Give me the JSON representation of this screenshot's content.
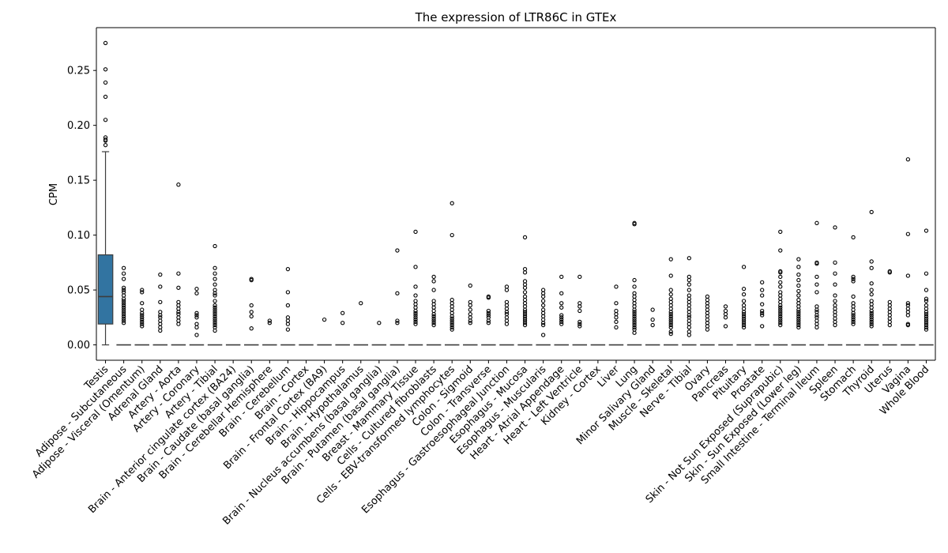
{
  "chart_data": {
    "type": "box",
    "title": "The expression of LTR86C in GTEx",
    "xlabel": "",
    "ylabel": "CPM",
    "ylim": [
      -0.014,
      0.289
    ],
    "yticks": [
      0.0,
      0.05,
      0.1,
      0.15,
      0.2,
      0.25
    ],
    "ytick_labels": [
      "0.00",
      "0.05",
      "0.10",
      "0.15",
      "0.20",
      "0.25"
    ],
    "grid": false,
    "box_color": "#3274a1",
    "categories": [
      "Testis",
      "Adipose - Subcutaneous",
      "Adipose - Visceral (Omentum)",
      "Adrenal Gland",
      "Artery - Aorta",
      "Artery - Coronary",
      "Artery - Tibial",
      "Brain - Anterior cingulate cortex (BA24)",
      "Brain - Caudate (basal ganglia)",
      "Brain - Cerebellar Hemisphere",
      "Brain - Cerebellum",
      "Brain - Cortex",
      "Brain - Frontal Cortex (BA9)",
      "Brain - Hippocampus",
      "Brain - Hypothalamus",
      "Brain - Nucleus accumbens (basal ganglia)",
      "Brain - Putamen (basal ganglia)",
      "Breast - Mammary Tissue",
      "Cells - Cultured fibroblasts",
      "Cells - EBV-transformed lymphocytes",
      "Colon - Sigmoid",
      "Colon - Transverse",
      "Esophagus - Gastroesophageal Junction",
      "Esophagus - Mucosa",
      "Esophagus - Muscularis",
      "Heart - Atrial Appendage",
      "Heart - Left Ventricle",
      "Kidney - Cortex",
      "Liver",
      "Lung",
      "Minor Salivary Gland",
      "Muscle - Skeletal",
      "Nerve - Tibial",
      "Ovary",
      "Pancreas",
      "Pituitary",
      "Prostate",
      "Skin - Not Sun Exposed (Suprapubic)",
      "Skin - Sun Exposed (Lower leg)",
      "Small Intestine - Terminal Ileum",
      "Spleen",
      "Stomach",
      "Thyroid",
      "Uterus",
      "Vagina",
      "Whole Blood"
    ],
    "boxes": [
      {
        "q1": 0.019,
        "median": 0.044,
        "q3": 0.082,
        "whisker_low": 0.0,
        "whisker_high": 0.176,
        "outliers": [
          0.275,
          0.251,
          0.239,
          0.226,
          0.205,
          0.189,
          0.187,
          0.186,
          0.182
        ]
      },
      {
        "q1": 0,
        "median": 0,
        "q3": 0,
        "whisker_low": 0,
        "whisker_high": 0,
        "outliers": [
          0.07,
          0.065,
          0.06,
          0.052,
          0.05,
          0.048,
          0.045,
          0.042,
          0.04,
          0.038,
          0.036,
          0.034,
          0.032,
          0.03,
          0.028,
          0.026,
          0.024,
          0.022,
          0.02
        ]
      },
      {
        "q1": 0,
        "median": 0,
        "q3": 0,
        "whisker_low": 0,
        "whisker_high": 0,
        "outliers": [
          0.05,
          0.048,
          0.038,
          0.032,
          0.029,
          0.027,
          0.025,
          0.023,
          0.021,
          0.019,
          0.017
        ]
      },
      {
        "q1": 0,
        "median": 0,
        "q3": 0,
        "whisker_low": 0,
        "whisker_high": 0,
        "outliers": [
          0.064,
          0.053,
          0.039,
          0.03,
          0.027,
          0.025,
          0.022,
          0.019,
          0.016,
          0.013
        ]
      },
      {
        "q1": 0,
        "median": 0,
        "q3": 0,
        "whisker_low": 0,
        "whisker_high": 0,
        "outliers": [
          0.146,
          0.065,
          0.052,
          0.039,
          0.036,
          0.033,
          0.03,
          0.028,
          0.025,
          0.022,
          0.019
        ]
      },
      {
        "q1": 0,
        "median": 0,
        "q3": 0,
        "whisker_low": 0,
        "whisker_high": 0,
        "outliers": [
          0.051,
          0.047,
          0.029,
          0.027,
          0.025,
          0.019,
          0.016,
          0.009
        ]
      },
      {
        "q1": 0,
        "median": 0,
        "q3": 0,
        "whisker_low": 0,
        "whisker_high": 0,
        "outliers": [
          0.09,
          0.07,
          0.065,
          0.06,
          0.055,
          0.05,
          0.047,
          0.045,
          0.04,
          0.036,
          0.034,
          0.032,
          0.03,
          0.028,
          0.026,
          0.024,
          0.022,
          0.02,
          0.018,
          0.016,
          0.013
        ]
      },
      {
        "q1": 0,
        "median": 0,
        "q3": 0,
        "whisker_low": 0,
        "whisker_high": 0,
        "outliers": []
      },
      {
        "q1": 0,
        "median": 0,
        "q3": 0,
        "whisker_low": 0,
        "whisker_high": 0,
        "outliers": [
          0.06,
          0.059,
          0.036,
          0.03,
          0.026,
          0.015
        ]
      },
      {
        "q1": 0,
        "median": 0,
        "q3": 0,
        "whisker_low": 0,
        "whisker_high": 0,
        "outliers": [
          0.022,
          0.02
        ]
      },
      {
        "q1": 0,
        "median": 0,
        "q3": 0,
        "whisker_low": 0,
        "whisker_high": 0,
        "outliers": [
          0.069,
          0.048,
          0.036,
          0.025,
          0.022,
          0.019,
          0.014
        ]
      },
      {
        "q1": 0,
        "median": 0,
        "q3": 0,
        "whisker_low": 0,
        "whisker_high": 0,
        "outliers": []
      },
      {
        "q1": 0,
        "median": 0,
        "q3": 0,
        "whisker_low": 0,
        "whisker_high": 0,
        "outliers": [
          0.023
        ]
      },
      {
        "q1": 0,
        "median": 0,
        "q3": 0,
        "whisker_low": 0,
        "whisker_high": 0,
        "outliers": [
          0.029,
          0.02
        ]
      },
      {
        "q1": 0,
        "median": 0,
        "q3": 0,
        "whisker_low": 0,
        "whisker_high": 0,
        "outliers": [
          0.038
        ]
      },
      {
        "q1": 0,
        "median": 0,
        "q3": 0,
        "whisker_low": 0,
        "whisker_high": 0,
        "outliers": [
          0.02
        ]
      },
      {
        "q1": 0,
        "median": 0,
        "q3": 0,
        "whisker_low": 0,
        "whisker_high": 0,
        "outliers": [
          0.086,
          0.047,
          0.022,
          0.02
        ]
      },
      {
        "q1": 0,
        "median": 0,
        "q3": 0,
        "whisker_low": 0,
        "whisker_high": 0,
        "outliers": [
          0.103,
          0.071,
          0.053,
          0.045,
          0.04,
          0.037,
          0.034,
          0.031,
          0.029,
          0.027,
          0.025,
          0.023,
          0.021,
          0.019
        ]
      },
      {
        "q1": 0,
        "median": 0,
        "q3": 0,
        "whisker_low": 0,
        "whisker_high": 0,
        "outliers": [
          0.062,
          0.058,
          0.05,
          0.04,
          0.037,
          0.034,
          0.031,
          0.028,
          0.026,
          0.024,
          0.022,
          0.02,
          0.018
        ]
      },
      {
        "q1": 0,
        "median": 0,
        "q3": 0,
        "whisker_low": 0,
        "whisker_high": 0,
        "outliers": [
          0.129,
          0.1,
          0.041,
          0.038,
          0.035,
          0.032,
          0.029,
          0.026,
          0.024,
          0.022,
          0.02,
          0.018,
          0.016,
          0.014
        ]
      },
      {
        "q1": 0,
        "median": 0,
        "q3": 0,
        "whisker_low": 0,
        "whisker_high": 0,
        "outliers": [
          0.054,
          0.039,
          0.036,
          0.032,
          0.028,
          0.025,
          0.022,
          0.02
        ]
      },
      {
        "q1": 0,
        "median": 0,
        "q3": 0,
        "whisker_low": 0,
        "whisker_high": 0,
        "outliers": [
          0.044,
          0.043,
          0.031,
          0.029,
          0.027,
          0.025,
          0.022,
          0.02
        ]
      },
      {
        "q1": 0,
        "median": 0,
        "q3": 0,
        "whisker_low": 0,
        "whisker_high": 0,
        "outliers": [
          0.053,
          0.05,
          0.039,
          0.036,
          0.033,
          0.03,
          0.028,
          0.025,
          0.022,
          0.019
        ]
      },
      {
        "q1": 0,
        "median": 0,
        "q3": 0,
        "whisker_low": 0,
        "whisker_high": 0,
        "outliers": [
          0.098,
          0.069,
          0.066,
          0.058,
          0.055,
          0.052,
          0.048,
          0.044,
          0.041,
          0.038,
          0.035,
          0.032,
          0.03,
          0.028,
          0.026,
          0.024,
          0.022,
          0.02,
          0.018
        ]
      },
      {
        "q1": 0,
        "median": 0,
        "q3": 0,
        "whisker_low": 0,
        "whisker_high": 0,
        "outliers": [
          0.05,
          0.047,
          0.044,
          0.04,
          0.036,
          0.032,
          0.029,
          0.026,
          0.023,
          0.02,
          0.018,
          0.009
        ]
      },
      {
        "q1": 0,
        "median": 0,
        "q3": 0,
        "whisker_low": 0,
        "whisker_high": 0,
        "outliers": [
          0.062,
          0.047,
          0.038,
          0.034,
          0.027,
          0.025,
          0.023,
          0.021,
          0.019
        ]
      },
      {
        "q1": 0,
        "median": 0,
        "q3": 0,
        "whisker_low": 0,
        "whisker_high": 0,
        "outliers": [
          0.062,
          0.038,
          0.035,
          0.031,
          0.021,
          0.019,
          0.017
        ]
      },
      {
        "q1": 0,
        "median": 0,
        "q3": 0,
        "whisker_low": 0,
        "whisker_high": 0,
        "outliers": []
      },
      {
        "q1": 0,
        "median": 0,
        "q3": 0,
        "whisker_low": 0,
        "whisker_high": 0,
        "outliers": [
          0.053,
          0.038,
          0.031,
          0.028,
          0.025,
          0.021,
          0.016
        ]
      },
      {
        "q1": 0,
        "median": 0,
        "q3": 0,
        "whisker_low": 0,
        "whisker_high": 0,
        "outliers": [
          0.111,
          0.11,
          0.059,
          0.053,
          0.047,
          0.044,
          0.041,
          0.038,
          0.035,
          0.032,
          0.03,
          0.028,
          0.026,
          0.024,
          0.022,
          0.02,
          0.018,
          0.016,
          0.014,
          0.011
        ]
      },
      {
        "q1": 0,
        "median": 0,
        "q3": 0,
        "whisker_low": 0,
        "whisker_high": 0,
        "outliers": [
          0.032,
          0.023,
          0.018
        ]
      },
      {
        "q1": 0,
        "median": 0,
        "q3": 0,
        "whisker_low": 0,
        "whisker_high": 0,
        "outliers": [
          0.078,
          0.063,
          0.05,
          0.046,
          0.042,
          0.039,
          0.036,
          0.033,
          0.03,
          0.028,
          0.026,
          0.024,
          0.022,
          0.02,
          0.018,
          0.016,
          0.012,
          0.01
        ]
      },
      {
        "q1": 0,
        "median": 0,
        "q3": 0,
        "whisker_low": 0,
        "whisker_high": 0,
        "outliers": [
          0.079,
          0.062,
          0.059,
          0.055,
          0.05,
          0.045,
          0.042,
          0.039,
          0.036,
          0.033,
          0.03,
          0.027,
          0.025,
          0.022,
          0.019,
          0.016,
          0.012,
          0.009
        ]
      },
      {
        "q1": 0,
        "median": 0,
        "q3": 0,
        "whisker_low": 0,
        "whisker_high": 0,
        "outliers": [
          0.044,
          0.041,
          0.038,
          0.035,
          0.032,
          0.029,
          0.026,
          0.023,
          0.02,
          0.017,
          0.014
        ]
      },
      {
        "q1": 0,
        "median": 0,
        "q3": 0,
        "whisker_low": 0,
        "whisker_high": 0,
        "outliers": [
          0.035,
          0.031,
          0.028,
          0.025,
          0.017
        ]
      },
      {
        "q1": 0,
        "median": 0,
        "q3": 0,
        "whisker_low": 0,
        "whisker_high": 0,
        "outliers": [
          0.071,
          0.051,
          0.046,
          0.04,
          0.036,
          0.033,
          0.03,
          0.028,
          0.026,
          0.024,
          0.022,
          0.02,
          0.018,
          0.016
        ]
      },
      {
        "q1": 0,
        "median": 0,
        "q3": 0,
        "whisker_low": 0,
        "whisker_high": 0,
        "outliers": [
          0.057,
          0.05,
          0.045,
          0.037,
          0.031,
          0.029,
          0.027,
          0.017
        ]
      },
      {
        "q1": 0,
        "median": 0,
        "q3": 0,
        "whisker_low": 0,
        "whisker_high": 0,
        "outliers": [
          0.103,
          0.086,
          0.067,
          0.066,
          0.062,
          0.057,
          0.053,
          0.048,
          0.045,
          0.042,
          0.039,
          0.036,
          0.034,
          0.032,
          0.03,
          0.028,
          0.026,
          0.024,
          0.022,
          0.02,
          0.018
        ]
      },
      {
        "q1": 0,
        "median": 0,
        "q3": 0,
        "whisker_low": 0,
        "whisker_high": 0,
        "outliers": [
          0.078,
          0.071,
          0.064,
          0.059,
          0.054,
          0.049,
          0.045,
          0.041,
          0.038,
          0.035,
          0.032,
          0.03,
          0.028,
          0.026,
          0.024,
          0.022,
          0.02,
          0.018,
          0.016
        ]
      },
      {
        "q1": 0,
        "median": 0,
        "q3": 0,
        "whisker_low": 0,
        "whisker_high": 0,
        "outliers": [
          0.111,
          0.075,
          0.074,
          0.062,
          0.055,
          0.048,
          0.035,
          0.032,
          0.03,
          0.027,
          0.025,
          0.022,
          0.019,
          0.016
        ]
      },
      {
        "q1": 0,
        "median": 0,
        "q3": 0,
        "whisker_low": 0,
        "whisker_high": 0,
        "outliers": [
          0.107,
          0.075,
          0.065,
          0.055,
          0.045,
          0.04,
          0.036,
          0.033,
          0.03,
          0.027,
          0.024,
          0.021,
          0.018
        ]
      },
      {
        "q1": 0,
        "median": 0,
        "q3": 0,
        "whisker_low": 0,
        "whisker_high": 0,
        "outliers": [
          0.098,
          0.062,
          0.06,
          0.058,
          0.044,
          0.038,
          0.035,
          0.032,
          0.029,
          0.027,
          0.025,
          0.023,
          0.021,
          0.019
        ]
      },
      {
        "q1": 0,
        "median": 0,
        "q3": 0,
        "whisker_low": 0,
        "whisker_high": 0,
        "outliers": [
          0.121,
          0.076,
          0.07,
          0.056,
          0.05,
          0.046,
          0.04,
          0.037,
          0.034,
          0.031,
          0.029,
          0.027,
          0.025,
          0.023,
          0.021,
          0.019,
          0.017
        ]
      },
      {
        "q1": 0,
        "median": 0,
        "q3": 0,
        "whisker_low": 0,
        "whisker_high": 0,
        "outliers": [
          0.067,
          0.066,
          0.039,
          0.036,
          0.033,
          0.03,
          0.027,
          0.024,
          0.021,
          0.018
        ]
      },
      {
        "q1": 0,
        "median": 0,
        "q3": 0,
        "whisker_low": 0,
        "whisker_high": 0,
        "outliers": [
          0.169,
          0.101,
          0.063,
          0.038,
          0.036,
          0.033,
          0.03,
          0.027,
          0.019,
          0.018
        ]
      },
      {
        "q1": 0,
        "median": 0,
        "q3": 0,
        "whisker_low": 0,
        "whisker_high": 0,
        "outliers": [
          0.104,
          0.065,
          0.05,
          0.042,
          0.04,
          0.036,
          0.033,
          0.03,
          0.028,
          0.026,
          0.024,
          0.022,
          0.02,
          0.018,
          0.016,
          0.014
        ]
      }
    ]
  }
}
